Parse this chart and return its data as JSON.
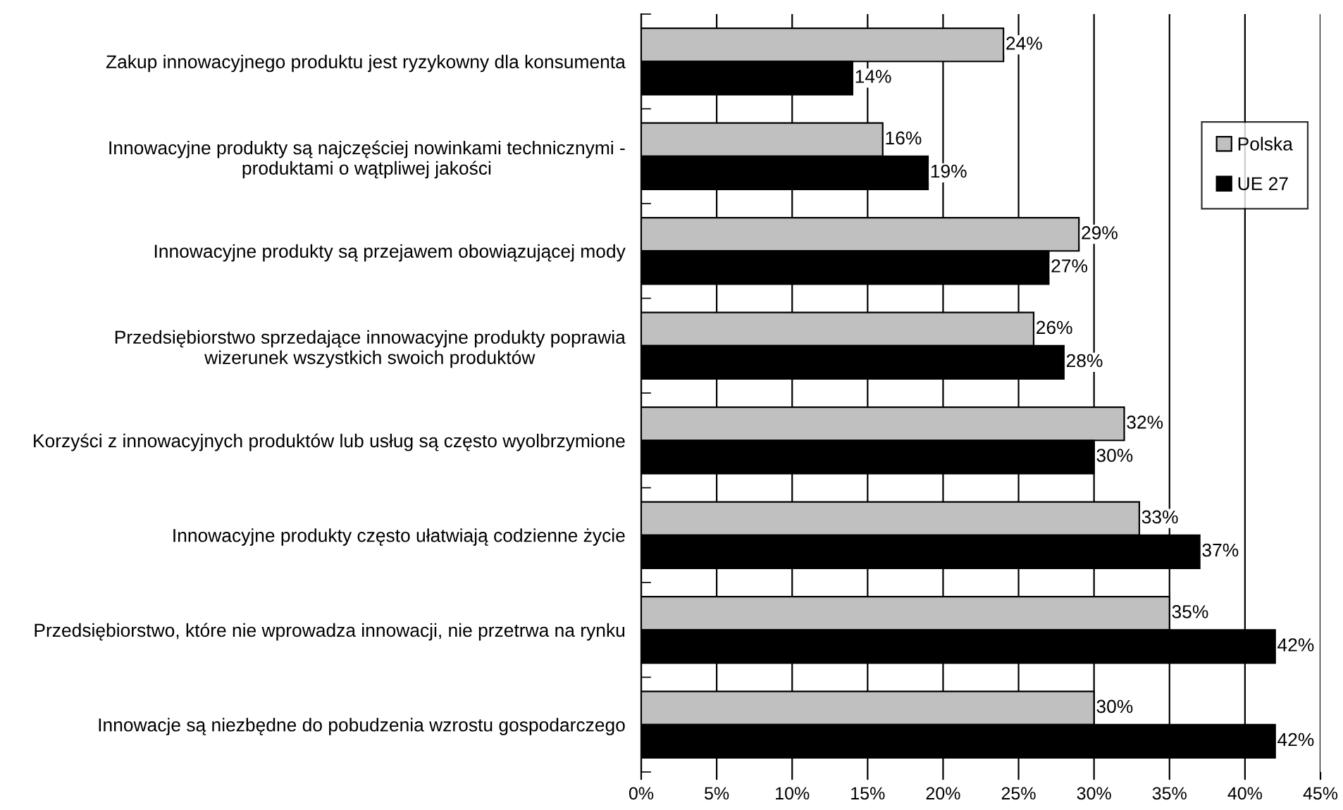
{
  "chart_data": {
    "type": "bar",
    "orientation": "horizontal",
    "categories": [
      "Zakup innowacyjnego produktu jest ryzykowny dla konsumenta",
      "Innowacyjne produkty są najczęściej nowinkami technicznymi -\nproduktami o wątpliwej jakości",
      "Innowacyjne produkty są przejawem obowiązującej mody",
      "Przedsiębiorstwo sprzedające innowacyjne produkty poprawia\nwizerunek wszystkich swoich produktów",
      "Korzyści z innowacyjnych produktów lub usług są często wyolbrzymione",
      "Innowacyjne produkty często ułatwiają codzienne życie",
      "Przedsiębiorstwo, które nie wprowadza innowacji, nie przetrwa na rynku",
      "Innowacje są niezbędne do pobudzenia wzrostu gospodarczego"
    ],
    "series": [
      {
        "name": "Polska",
        "color": "#c0c0c0",
        "values": [
          24,
          16,
          29,
          26,
          32,
          33,
          35,
          30
        ],
        "value_labels": [
          "24%",
          "16%",
          "29%",
          "26%",
          "32%",
          "33%",
          "35%",
          "30%"
        ]
      },
      {
        "name": "UE 27",
        "color": "#000000",
        "values": [
          14,
          19,
          27,
          28,
          30,
          37,
          42,
          42
        ],
        "value_labels": [
          "14%",
          "19%",
          "27%",
          "28%",
          "30%",
          "37%",
          "42%",
          "42%"
        ]
      }
    ],
    "xlim": [
      0,
      45
    ],
    "xticks": [
      {
        "value": 0,
        "label": "0%"
      },
      {
        "value": 5,
        "label": "5%"
      },
      {
        "value": 10,
        "label": "10%"
      },
      {
        "value": 15,
        "label": "15%"
      },
      {
        "value": 20,
        "label": "20%"
      },
      {
        "value": 25,
        "label": "25%"
      },
      {
        "value": 30,
        "label": "30%"
      },
      {
        "value": 35,
        "label": "35%"
      },
      {
        "value": 40,
        "label": "40%"
      },
      {
        "value": 45,
        "label": "45%"
      }
    ],
    "grid": "x",
    "legend": "top right"
  }
}
